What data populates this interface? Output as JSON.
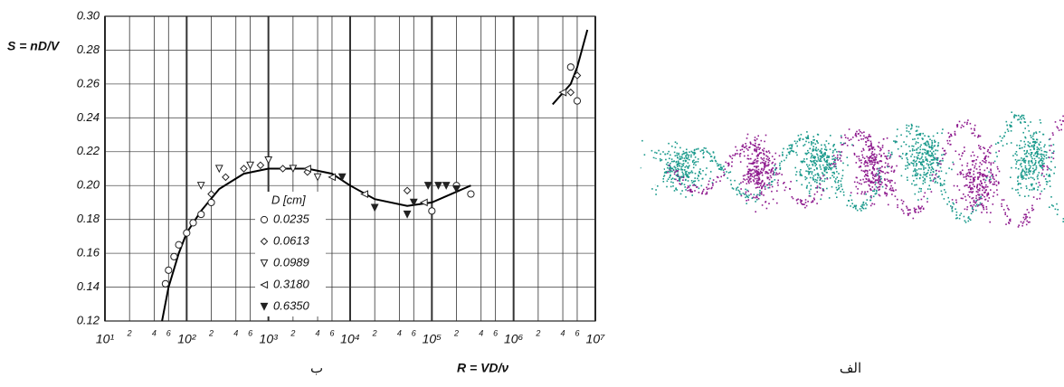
{
  "chart_data": {
    "type": "scatter",
    "y_label": "S = nD/V",
    "x_label": "R = VD/ν",
    "panel_label": "ب",
    "log_x": true,
    "grid": true,
    "xlim": [
      10,
      10000000
    ],
    "ylim": [
      0.12,
      0.3
    ],
    "xticks": [
      {
        "value": 10,
        "label": "10¹"
      },
      {
        "value": 20,
        "label": "2"
      },
      {
        "value": 40,
        "label": "4"
      },
      {
        "value": 60,
        "label": "6"
      },
      {
        "value": 100,
        "label": "10²"
      },
      {
        "value": 200,
        "label": "2"
      },
      {
        "value": 400,
        "label": "4"
      },
      {
        "value": 600,
        "label": "6"
      },
      {
        "value": 1000,
        "label": "10³"
      },
      {
        "value": 2000,
        "label": "2"
      },
      {
        "value": 4000,
        "label": "4"
      },
      {
        "value": 6000,
        "label": "6"
      },
      {
        "value": 10000,
        "label": "10⁴"
      },
      {
        "value": 20000,
        "label": "2"
      },
      {
        "value": 40000,
        "label": "4"
      },
      {
        "value": 60000,
        "label": "6"
      },
      {
        "value": 100000,
        "label": "10⁵"
      },
      {
        "value": 200000,
        "label": "2"
      },
      {
        "value": 400000,
        "label": "4"
      },
      {
        "value": 600000,
        "label": "6"
      },
      {
        "value": 1000000,
        "label": "10⁶"
      },
      {
        "value": 2000000,
        "label": "2"
      },
      {
        "value": 4000000,
        "label": "4"
      },
      {
        "value": 6000000,
        "label": "6"
      },
      {
        "value": 10000000,
        "label": "10⁷"
      }
    ],
    "yticks": [
      0.12,
      0.14,
      0.16,
      0.18,
      {
        "value": 0.2,
        "label": "0.20"
      },
      0.22,
      0.24,
      0.26,
      0.28,
      {
        "value": 0.3,
        "label": "0.30"
      }
    ],
    "legend_title": "D [cm]",
    "series": [
      {
        "name": "0.0235",
        "marker": "circle",
        "color": "#222222",
        "x": [
          55,
          60,
          70,
          80,
          100,
          120,
          150,
          200,
          100000,
          200000,
          300000,
          5000000,
          6000000
        ],
        "values": [
          0.142,
          0.15,
          0.158,
          0.165,
          0.172,
          0.178,
          0.183,
          0.19,
          0.185,
          0.2,
          0.195,
          0.27,
          0.25
        ]
      },
      {
        "name": "0.0613",
        "marker": "diamond",
        "color": "#222222",
        "x": [
          200,
          300,
          500,
          800,
          1500,
          3000,
          50000,
          5000000,
          6000000
        ],
        "values": [
          0.195,
          0.205,
          0.21,
          0.212,
          0.21,
          0.208,
          0.197,
          0.255,
          0.265
        ]
      },
      {
        "name": "0.0989",
        "marker": "triangle-down",
        "color": "#222222",
        "x": [
          150,
          250,
          600,
          1000,
          2000,
          4000
        ],
        "values": [
          0.2,
          0.21,
          0.212,
          0.215,
          0.21,
          0.205
        ]
      },
      {
        "name": "0.3180",
        "marker": "triangle-left",
        "color": "#222222",
        "x": [
          3000,
          6000,
          15000,
          80000,
          4000000
        ],
        "values": [
          0.21,
          0.205,
          0.195,
          0.19,
          0.255
        ]
      },
      {
        "name": "0.6350",
        "marker": "filled-triangle",
        "color": "#222222",
        "x": [
          8000,
          20000,
          50000,
          60000,
          90000,
          120000,
          150000,
          200000
        ],
        "values": [
          0.205,
          0.187,
          0.183,
          0.19,
          0.2,
          0.2,
          0.2,
          0.198
        ]
      }
    ],
    "curve": {
      "x": [
        50,
        60,
        80,
        100,
        150,
        250,
        500,
        1000,
        3000,
        6000,
        10000,
        20000,
        50000,
        100000,
        300000,
        null,
        3000000,
        5000000,
        6000000,
        8000000
      ],
      "values": [
        0.12,
        0.14,
        0.16,
        0.172,
        0.185,
        0.198,
        0.207,
        0.21,
        0.21,
        0.207,
        0.2,
        0.192,
        0.188,
        0.19,
        0.2,
        null,
        0.248,
        0.26,
        0.27,
        0.292
      ]
    }
  },
  "image_panel": {
    "label": "الف"
  }
}
